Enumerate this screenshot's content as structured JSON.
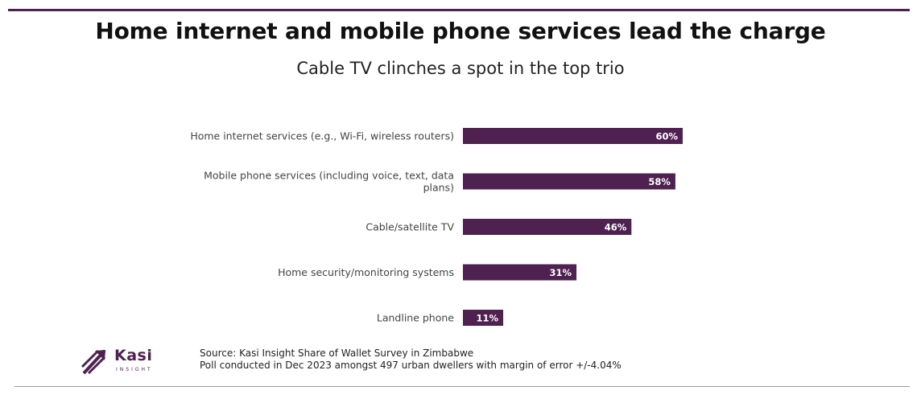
{
  "header": {
    "title": "Home internet and mobile phone services lead the charge",
    "subtitle": "Cable TV clinches a spot in the top trio"
  },
  "chart_data": {
    "type": "bar",
    "orientation": "horizontal",
    "title": "Home internet and mobile phone services lead the charge",
    "subtitle": "Cable TV clinches a spot in the top trio",
    "categories": [
      "Home internet services (e.g., Wi-Fi, wireless routers)",
      "Mobile phone services (including voice, text, data plans)",
      "Cable/satellite TV",
      "Home security/monitoring systems",
      "Landline phone"
    ],
    "values": [
      60,
      58,
      46,
      31,
      11
    ],
    "value_labels": [
      "60%",
      "58%",
      "46%",
      "31%",
      "11%"
    ],
    "xlim": [
      0,
      100
    ],
    "bar_color": "#4f2150",
    "grid": false,
    "legend": "none"
  },
  "logo": {
    "name": "Kasi",
    "sub": "INSIGHT",
    "color": "#4f2150"
  },
  "footer": {
    "source_line1": "Source: Kasi Insight Share of Wallet Survey in Zimbabwe",
    "source_line2": "Poll conducted  in Dec 2023 amongst 497 urban dwellers with margin of error +/-4.04%"
  }
}
